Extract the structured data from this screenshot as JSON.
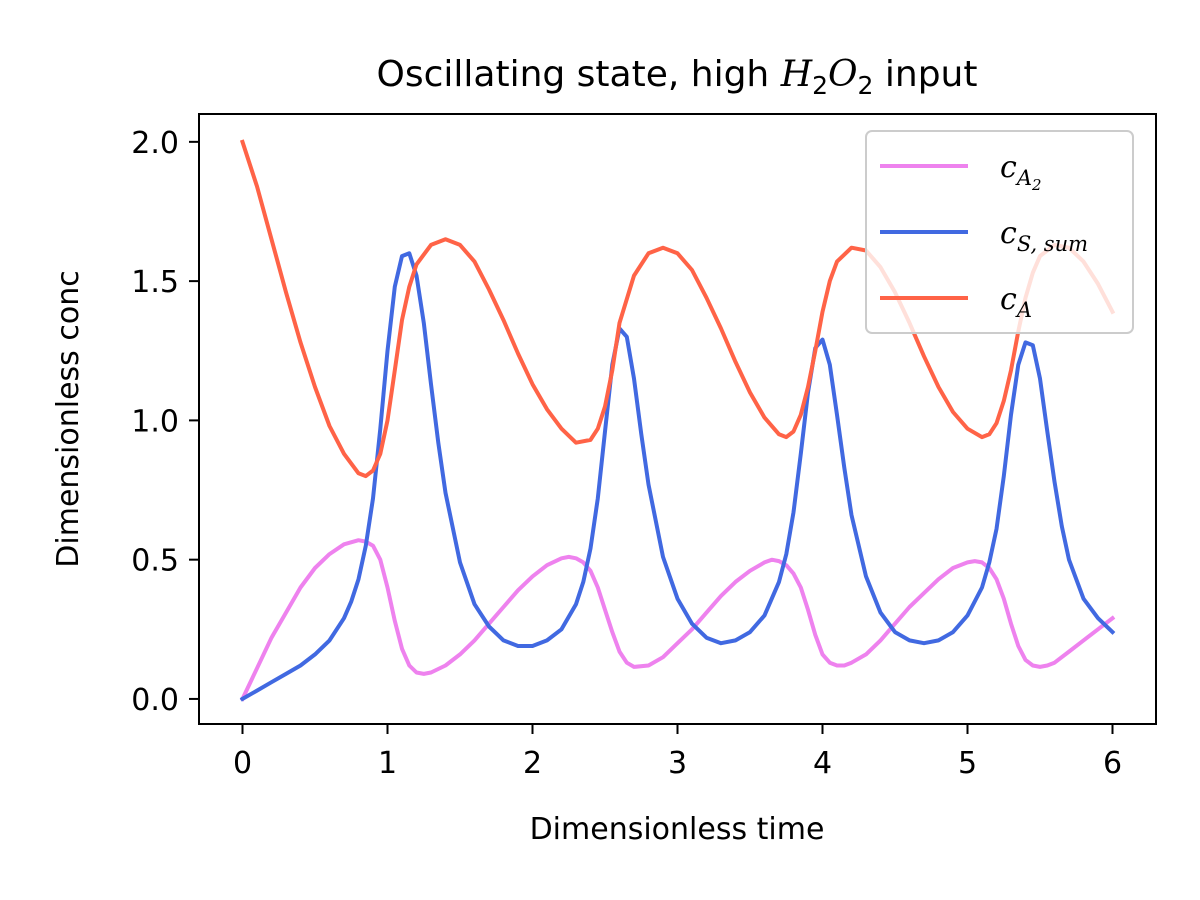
{
  "chart_data": {
    "type": "line",
    "title": {
      "prefix": "Oscillating state, high ",
      "math_base1": "H",
      "math_sub1": "2",
      "math_base2": "O",
      "math_sub2": "2",
      "suffix": " input"
    },
    "xlabel": "Dimensionless time",
    "ylabel": "Dimensionless conc",
    "xlim": [
      -0.3,
      6.3
    ],
    "ylim": [
      -0.09,
      2.1
    ],
    "xticks": [
      0,
      1,
      2,
      3,
      4,
      5,
      6
    ],
    "xtick_labels": [
      "0",
      "1",
      "2",
      "3",
      "4",
      "5",
      "6"
    ],
    "yticks": [
      0.0,
      0.5,
      1.0,
      1.5,
      2.0
    ],
    "ytick_labels": [
      "0.0",
      "0.5",
      "1.0",
      "1.5",
      "2.0"
    ],
    "grid": false,
    "legend_position": "top-right",
    "series": [
      {
        "key": "cA2",
        "name": "c_{A_2}",
        "legend": {
          "base": "c",
          "sub": "A",
          "subsub": "2"
        },
        "color": "#ee82ee",
        "x": [
          0,
          0.1,
          0.2,
          0.3,
          0.4,
          0.5,
          0.6,
          0.7,
          0.8,
          0.85,
          0.9,
          0.95,
          1.0,
          1.05,
          1.1,
          1.15,
          1.2,
          1.25,
          1.3,
          1.4,
          1.5,
          1.6,
          1.7,
          1.8,
          1.9,
          2.0,
          2.1,
          2.2,
          2.25,
          2.3,
          2.35,
          2.4,
          2.45,
          2.5,
          2.55,
          2.6,
          2.65,
          2.7,
          2.8,
          2.9,
          3.0,
          3.1,
          3.2,
          3.3,
          3.4,
          3.5,
          3.6,
          3.65,
          3.7,
          3.75,
          3.8,
          3.85,
          3.9,
          3.95,
          4.0,
          4.05,
          4.1,
          4.15,
          4.2,
          4.3,
          4.4,
          4.5,
          4.6,
          4.7,
          4.8,
          4.9,
          5.0,
          5.05,
          5.1,
          5.15,
          5.2,
          5.25,
          5.3,
          5.35,
          5.4,
          5.45,
          5.5,
          5.55,
          5.6,
          5.7,
          5.8,
          5.9,
          6.0
        ],
        "y": [
          0.0,
          0.11,
          0.22,
          0.31,
          0.4,
          0.47,
          0.52,
          0.555,
          0.57,
          0.565,
          0.55,
          0.5,
          0.4,
          0.28,
          0.18,
          0.12,
          0.095,
          0.09,
          0.095,
          0.12,
          0.16,
          0.21,
          0.27,
          0.33,
          0.39,
          0.44,
          0.48,
          0.505,
          0.51,
          0.505,
          0.49,
          0.46,
          0.4,
          0.32,
          0.24,
          0.17,
          0.13,
          0.115,
          0.12,
          0.15,
          0.2,
          0.25,
          0.31,
          0.37,
          0.42,
          0.46,
          0.49,
          0.5,
          0.495,
          0.48,
          0.45,
          0.4,
          0.32,
          0.23,
          0.16,
          0.13,
          0.12,
          0.12,
          0.13,
          0.16,
          0.21,
          0.27,
          0.33,
          0.38,
          0.43,
          0.47,
          0.49,
          0.495,
          0.49,
          0.47,
          0.43,
          0.36,
          0.27,
          0.19,
          0.14,
          0.12,
          0.115,
          0.12,
          0.13,
          0.17,
          0.21,
          0.25,
          0.29
        ]
      },
      {
        "key": "cS",
        "name": "c_{S, sum}",
        "legend": {
          "base": "c",
          "sub": "S, sum",
          "subsub": ""
        },
        "color": "#4169e1",
        "x": [
          0,
          0.1,
          0.2,
          0.3,
          0.4,
          0.5,
          0.6,
          0.7,
          0.75,
          0.8,
          0.85,
          0.9,
          0.95,
          1.0,
          1.05,
          1.1,
          1.15,
          1.2,
          1.25,
          1.3,
          1.35,
          1.4,
          1.5,
          1.6,
          1.7,
          1.8,
          1.9,
          2.0,
          2.1,
          2.2,
          2.3,
          2.35,
          2.4,
          2.45,
          2.5,
          2.55,
          2.6,
          2.65,
          2.7,
          2.75,
          2.8,
          2.9,
          3.0,
          3.1,
          3.2,
          3.3,
          3.4,
          3.5,
          3.6,
          3.7,
          3.75,
          3.8,
          3.85,
          3.9,
          3.95,
          4.0,
          4.05,
          4.1,
          4.15,
          4.2,
          4.3,
          4.4,
          4.5,
          4.6,
          4.7,
          4.8,
          4.9,
          5.0,
          5.1,
          5.15,
          5.2,
          5.25,
          5.3,
          5.35,
          5.4,
          5.45,
          5.5,
          5.55,
          5.6,
          5.65,
          5.7,
          5.8,
          5.9,
          6.0
        ],
        "y": [
          0.0,
          0.03,
          0.06,
          0.09,
          0.12,
          0.16,
          0.21,
          0.29,
          0.35,
          0.43,
          0.55,
          0.72,
          0.97,
          1.25,
          1.48,
          1.59,
          1.6,
          1.52,
          1.35,
          1.13,
          0.92,
          0.74,
          0.49,
          0.34,
          0.26,
          0.21,
          0.19,
          0.19,
          0.21,
          0.25,
          0.34,
          0.42,
          0.54,
          0.72,
          0.96,
          1.2,
          1.33,
          1.3,
          1.15,
          0.95,
          0.77,
          0.51,
          0.36,
          0.27,
          0.22,
          0.2,
          0.21,
          0.24,
          0.3,
          0.42,
          0.52,
          0.67,
          0.88,
          1.1,
          1.26,
          1.29,
          1.2,
          1.02,
          0.83,
          0.66,
          0.44,
          0.31,
          0.24,
          0.21,
          0.2,
          0.21,
          0.24,
          0.3,
          0.4,
          0.49,
          0.61,
          0.8,
          1.02,
          1.2,
          1.28,
          1.27,
          1.15,
          0.96,
          0.78,
          0.62,
          0.5,
          0.36,
          0.29,
          0.24
        ]
      },
      {
        "key": "cA",
        "name": "c_A",
        "legend": {
          "base": "c",
          "sub": "A",
          "subsub": ""
        },
        "color": "#ff6347",
        "x": [
          0,
          0.1,
          0.2,
          0.3,
          0.4,
          0.5,
          0.6,
          0.7,
          0.8,
          0.85,
          0.9,
          0.95,
          1.0,
          1.05,
          1.1,
          1.15,
          1.2,
          1.3,
          1.4,
          1.5,
          1.6,
          1.7,
          1.8,
          1.9,
          2.0,
          2.1,
          2.2,
          2.3,
          2.4,
          2.45,
          2.5,
          2.55,
          2.6,
          2.7,
          2.8,
          2.9,
          3.0,
          3.1,
          3.2,
          3.3,
          3.4,
          3.5,
          3.6,
          3.7,
          3.75,
          3.8,
          3.85,
          3.9,
          3.95,
          4.0,
          4.05,
          4.1,
          4.2,
          4.3,
          4.4,
          4.5,
          4.6,
          4.7,
          4.8,
          4.9,
          5.0,
          5.1,
          5.15,
          5.2,
          5.25,
          5.3,
          5.35,
          5.4,
          5.45,
          5.5,
          5.6,
          5.7,
          5.8,
          5.9,
          6.0
        ],
        "y": [
          2.0,
          1.84,
          1.65,
          1.46,
          1.28,
          1.12,
          0.98,
          0.88,
          0.81,
          0.8,
          0.82,
          0.88,
          1.0,
          1.18,
          1.36,
          1.48,
          1.56,
          1.63,
          1.65,
          1.63,
          1.57,
          1.47,
          1.36,
          1.24,
          1.13,
          1.04,
          0.97,
          0.92,
          0.93,
          0.97,
          1.05,
          1.18,
          1.35,
          1.52,
          1.6,
          1.62,
          1.6,
          1.54,
          1.44,
          1.33,
          1.21,
          1.1,
          1.01,
          0.95,
          0.94,
          0.96,
          1.02,
          1.12,
          1.25,
          1.39,
          1.5,
          1.57,
          1.62,
          1.61,
          1.55,
          1.46,
          1.35,
          1.23,
          1.12,
          1.03,
          0.97,
          0.94,
          0.95,
          0.99,
          1.07,
          1.18,
          1.32,
          1.44,
          1.53,
          1.59,
          1.63,
          1.62,
          1.57,
          1.49,
          1.39
        ]
      }
    ]
  }
}
